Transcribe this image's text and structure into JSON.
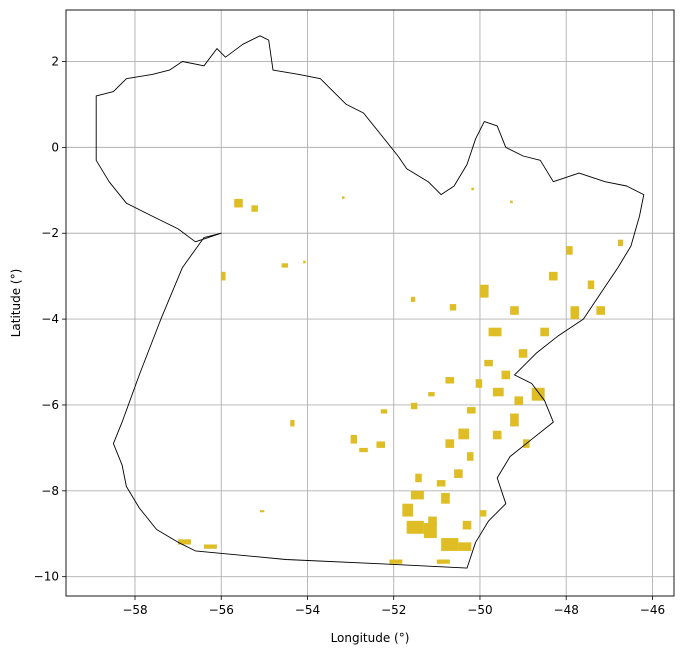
{
  "chart_data": {
    "type": "map",
    "xlabel": "Longitude (°)",
    "ylabel": "Latitude (°)",
    "xlim": [
      -59.6,
      -45.5
    ],
    "ylim": [
      -10.45,
      3.2
    ],
    "x_ticks": [
      -58,
      -56,
      -54,
      -52,
      -50,
      -48,
      -46
    ],
    "y_ticks": [
      2,
      0,
      -2,
      -4,
      -6,
      -8,
      -10
    ],
    "x_tick_labels": [
      "−58",
      "−56",
      "−54",
      "−52",
      "−50",
      "−48",
      "−46"
    ],
    "y_tick_labels": [
      "2",
      "0",
      "−2",
      "−4",
      "−6",
      "−8",
      "−10"
    ],
    "grid": true,
    "outline_color": "#000000",
    "patch_color": "#dfbd24",
    "outline": [
      [
        -58.9,
        1.2
      ],
      [
        -58.5,
        1.3
      ],
      [
        -58.2,
        1.6
      ],
      [
        -57.6,
        1.7
      ],
      [
        -57.2,
        1.8
      ],
      [
        -56.9,
        2.0
      ],
      [
        -56.4,
        1.9
      ],
      [
        -56.1,
        2.3
      ],
      [
        -55.9,
        2.1
      ],
      [
        -55.5,
        2.4
      ],
      [
        -55.1,
        2.6
      ],
      [
        -54.9,
        2.5
      ],
      [
        -54.8,
        1.8
      ],
      [
        -54.2,
        1.7
      ],
      [
        -53.7,
        1.6
      ],
      [
        -53.4,
        1.3
      ],
      [
        -53.1,
        1.0
      ],
      [
        -52.7,
        0.8
      ],
      [
        -52.3,
        0.3
      ],
      [
        -51.9,
        -0.2
      ],
      [
        -51.7,
        -0.5
      ],
      [
        -51.2,
        -0.8
      ],
      [
        -50.9,
        -1.1
      ],
      [
        -50.6,
        -0.9
      ],
      [
        -50.3,
        -0.4
      ],
      [
        -50.1,
        0.2
      ],
      [
        -49.9,
        0.6
      ],
      [
        -49.6,
        0.5
      ],
      [
        -49.4,
        0.0
      ],
      [
        -49.0,
        -0.2
      ],
      [
        -48.6,
        -0.3
      ],
      [
        -48.3,
        -0.8
      ],
      [
        -47.7,
        -0.6
      ],
      [
        -47.1,
        -0.8
      ],
      [
        -46.6,
        -0.9
      ],
      [
        -46.2,
        -1.1
      ],
      [
        -46.3,
        -1.6
      ],
      [
        -46.5,
        -2.3
      ],
      [
        -46.8,
        -2.8
      ],
      [
        -47.2,
        -3.4
      ],
      [
        -47.6,
        -4.0
      ],
      [
        -48.2,
        -4.4
      ],
      [
        -48.7,
        -4.8
      ],
      [
        -49.2,
        -5.3
      ],
      [
        -48.8,
        -5.5
      ],
      [
        -48.5,
        -5.9
      ],
      [
        -48.3,
        -6.4
      ],
      [
        -48.8,
        -6.8
      ],
      [
        -49.3,
        -7.2
      ],
      [
        -49.6,
        -7.7
      ],
      [
        -49.4,
        -8.3
      ],
      [
        -49.8,
        -8.7
      ],
      [
        -50.1,
        -9.2
      ],
      [
        -50.3,
        -9.8
      ],
      [
        -52.3,
        -9.7
      ],
      [
        -54.5,
        -9.6
      ],
      [
        -56.6,
        -9.4
      ],
      [
        -57.0,
        -9.2
      ],
      [
        -57.5,
        -8.9
      ],
      [
        -57.9,
        -8.4
      ],
      [
        -58.2,
        -7.9
      ],
      [
        -58.3,
        -7.4
      ],
      [
        -58.5,
        -6.9
      ],
      [
        -58.3,
        -6.4
      ],
      [
        -57.9,
        -5.3
      ],
      [
        -57.4,
        -4.0
      ],
      [
        -56.9,
        -2.8
      ],
      [
        -56.4,
        -2.1
      ],
      [
        -56.0,
        -2.0
      ],
      [
        -56.6,
        -2.2
      ],
      [
        -57.0,
        -1.9
      ],
      [
        -57.6,
        -1.6
      ],
      [
        -58.2,
        -1.3
      ],
      [
        -58.6,
        -0.8
      ],
      [
        -58.9,
        -0.3
      ],
      [
        -58.9,
        0.4
      ]
    ],
    "patches": [
      [
        -51.8,
        -8.6,
        0.25,
        0.3
      ],
      [
        -51.6,
        -8.2,
        0.3,
        0.2
      ],
      [
        -51.7,
        -9.0,
        0.4,
        0.3
      ],
      [
        -51.3,
        -9.1,
        0.3,
        0.35
      ],
      [
        -50.9,
        -9.4,
        0.4,
        0.3
      ],
      [
        -50.5,
        -9.4,
        0.3,
        0.2
      ],
      [
        -51.2,
        -8.8,
        0.2,
        0.2
      ],
      [
        -50.9,
        -8.3,
        0.2,
        0.25
      ],
      [
        -51.5,
        -7.8,
        0.15,
        0.2
      ],
      [
        -51.0,
        -7.9,
        0.2,
        0.15
      ],
      [
        -50.6,
        -7.7,
        0.2,
        0.2
      ],
      [
        -50.3,
        -7.3,
        0.15,
        0.2
      ],
      [
        -50.8,
        -7.0,
        0.2,
        0.2
      ],
      [
        -50.5,
        -6.8,
        0.25,
        0.25
      ],
      [
        -49.7,
        -6.8,
        0.2,
        0.2
      ],
      [
        -49.3,
        -6.5,
        0.2,
        0.3
      ],
      [
        -49.7,
        -5.8,
        0.25,
        0.2
      ],
      [
        -50.1,
        -5.6,
        0.15,
        0.2
      ],
      [
        -49.5,
        -5.4,
        0.2,
        0.2
      ],
      [
        -48.8,
        -5.9,
        0.3,
        0.3
      ],
      [
        -49.1,
        -4.9,
        0.2,
        0.2
      ],
      [
        -49.8,
        -4.4,
        0.3,
        0.2
      ],
      [
        -50.0,
        -3.5,
        0.2,
        0.3
      ],
      [
        -49.3,
        -3.9,
        0.2,
        0.2
      ],
      [
        -48.6,
        -4.4,
        0.2,
        0.2
      ],
      [
        -47.9,
        -4.0,
        0.2,
        0.3
      ],
      [
        -48.4,
        -3.1,
        0.2,
        0.2
      ],
      [
        -48.0,
        -2.5,
        0.15,
        0.2
      ],
      [
        -47.5,
        -3.3,
        0.15,
        0.2
      ],
      [
        -47.3,
        -3.9,
        0.2,
        0.2
      ],
      [
        -46.8,
        -2.3,
        0.12,
        0.15
      ],
      [
        -50.7,
        -3.8,
        0.15,
        0.15
      ],
      [
        -51.6,
        -3.6,
        0.1,
        0.12
      ],
      [
        -50.8,
        -5.5,
        0.2,
        0.15
      ],
      [
        -52.4,
        -7.0,
        0.2,
        0.15
      ],
      [
        -53.0,
        -6.9,
        0.15,
        0.2
      ],
      [
        -52.8,
        -7.1,
        0.2,
        0.1
      ],
      [
        -52.3,
        -6.2,
        0.15,
        0.1
      ],
      [
        -51.6,
        -6.1,
        0.15,
        0.15
      ],
      [
        -55.7,
        -1.4,
        0.2,
        0.2
      ],
      [
        -55.3,
        -1.5,
        0.15,
        0.15
      ],
      [
        -56.0,
        -3.1,
        0.1,
        0.2
      ],
      [
        -54.6,
        -2.8,
        0.15,
        0.1
      ],
      [
        -52.1,
        -9.7,
        0.3,
        0.1
      ],
      [
        -51.0,
        -9.7,
        0.3,
        0.1
      ],
      [
        -57.0,
        -9.25,
        0.3,
        0.12
      ],
      [
        -56.4,
        -9.35,
        0.3,
        0.1
      ],
      [
        -51.2,
        -5.8,
        0.15,
        0.1
      ],
      [
        -50.0,
        -8.6,
        0.15,
        0.15
      ],
      [
        -50.4,
        -8.9,
        0.2,
        0.2
      ],
      [
        -49.9,
        -5.1,
        0.2,
        0.15
      ],
      [
        -53.2,
        -1.2,
        0.06,
        0.06
      ],
      [
        -54.1,
        -2.7,
        0.06,
        0.06
      ],
      [
        -55.1,
        -8.5,
        0.1,
        0.05
      ],
      [
        -54.4,
        -6.5,
        0.1,
        0.15
      ],
      [
        -50.2,
        -1.0,
        0.06,
        0.06
      ],
      [
        -49.3,
        -1.3,
        0.06,
        0.06
      ],
      [
        -49.2,
        -6.0,
        0.2,
        0.2
      ],
      [
        -49.0,
        -7.0,
        0.15,
        0.2
      ],
      [
        -50.3,
        -6.2,
        0.2,
        0.15
      ]
    ]
  }
}
